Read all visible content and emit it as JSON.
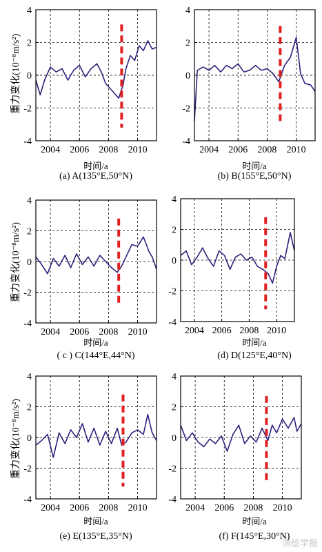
{
  "figure": {
    "ylabel": "重力变化(10⁻⁸m/s²)",
    "xlabel": "时间/a",
    "watermark": "测绘学报"
  },
  "chart_data": [
    {
      "type": "line",
      "caption": "(a) A(135°E,50°N)",
      "xticks": [
        "2004",
        "2006",
        "2008",
        "2010"
      ],
      "yticks": [
        "-4",
        "-2",
        "0",
        "2",
        "4"
      ],
      "xlim": [
        2003,
        2011.3
      ],
      "ylim": [
        -4,
        4
      ],
      "grid": true,
      "series_color": "#2e1f7a",
      "marker_color": "#e02020",
      "event_line_x": 2008.9,
      "event_line_y": [
        -3.2,
        3.1
      ],
      "series": [
        {
          "x": [
            2003.0,
            2003.3,
            2003.6,
            2004.0,
            2004.4,
            2004.8,
            2005.2,
            2005.6,
            2006.0,
            2006.4,
            2006.8,
            2007.2,
            2007.5,
            2007.8,
            2008.1,
            2008.4,
            2008.7,
            2009.0,
            2009.2,
            2009.5,
            2009.8,
            2010.1,
            2010.4,
            2010.7,
            2011.0,
            2011.3
          ],
          "y": [
            -0.3,
            -1.2,
            -0.3,
            0.5,
            0.2,
            0.4,
            -0.3,
            0.3,
            0.6,
            -0.1,
            0.4,
            0.7,
            0.2,
            -0.5,
            -0.8,
            -1.1,
            -1.4,
            -0.6,
            0.4,
            1.2,
            0.9,
            1.8,
            1.5,
            2.1,
            1.6,
            1.7
          ]
        }
      ]
    },
    {
      "type": "line",
      "caption": "(b) B(155°E,50°N)",
      "xticks": [
        "2004",
        "2006",
        "2008",
        "2010"
      ],
      "yticks": [
        "-4",
        "-2",
        "0",
        "2",
        "4"
      ],
      "xlim": [
        2003,
        2011.3
      ],
      "ylim": [
        -4,
        4
      ],
      "grid": true,
      "series_color": "#2e1f7a",
      "marker_color": "#e02020",
      "event_line_x": 2008.9,
      "event_line_y": [
        -2.8,
        3.0
      ],
      "series": [
        {
          "x": [
            2003.0,
            2003.2,
            2003.6,
            2004.0,
            2004.4,
            2004.8,
            2005.2,
            2005.6,
            2006.0,
            2006.4,
            2006.8,
            2007.2,
            2007.6,
            2008.0,
            2008.4,
            2008.8,
            2009.2,
            2009.6,
            2010.0,
            2010.3,
            2010.6,
            2011.0,
            2011.3
          ],
          "y": [
            -2.8,
            0.3,
            0.5,
            0.3,
            0.6,
            0.2,
            0.6,
            0.4,
            0.7,
            0.2,
            0.3,
            0.6,
            0.3,
            0.4,
            0.1,
            -0.4,
            0.6,
            1.1,
            2.3,
            0.1,
            -0.5,
            -0.6,
            -1.0
          ]
        }
      ]
    },
    {
      "type": "line",
      "caption": "( c ) C(144°E,44°N)",
      "xticks": [
        "2004",
        "2006",
        "2008",
        "2010"
      ],
      "yticks": [
        "-4",
        "-2",
        "0",
        "2",
        "4"
      ],
      "xlim": [
        2003,
        2011.3
      ],
      "ylim": [
        -4,
        4
      ],
      "grid": true,
      "series_color": "#2e1f7a",
      "marker_color": "#e02020",
      "event_line_x": 2008.7,
      "event_line_y": [
        -2.8,
        2.8
      ],
      "series": [
        {
          "x": [
            2003.0,
            2003.4,
            2003.8,
            2004.2,
            2004.6,
            2005.0,
            2005.4,
            2005.8,
            2006.2,
            2006.6,
            2007.0,
            2007.4,
            2007.8,
            2008.2,
            2008.6,
            2008.9,
            2009.2,
            2009.6,
            2010.0,
            2010.4,
            2010.8,
            2011.0,
            2011.3
          ],
          "y": [
            0.3,
            -0.2,
            -0.8,
            0.2,
            -0.3,
            0.4,
            -0.4,
            0.5,
            -0.2,
            0.3,
            -0.3,
            0.4,
            0.0,
            -0.4,
            -0.7,
            -0.3,
            0.3,
            1.1,
            1.0,
            1.6,
            0.6,
            0.3,
            -0.5
          ]
        }
      ]
    },
    {
      "type": "line",
      "caption": "(d) D(125°E,40°N)",
      "xticks": [
        "2004",
        "2006",
        "2008",
        "2010"
      ],
      "yticks": [
        "-4",
        "-2",
        "0",
        "2",
        "4"
      ],
      "xlim": [
        2003,
        2011.3
      ],
      "ylim": [
        -4,
        4
      ],
      "grid": true,
      "series_color": "#2e1f7a",
      "marker_color": "#e02020",
      "event_line_x": 2009.2,
      "event_line_y": [
        -3.2,
        2.8
      ],
      "series": [
        {
          "x": [
            2003.0,
            2003.4,
            2003.8,
            2004.2,
            2004.6,
            2005.0,
            2005.4,
            2005.8,
            2006.2,
            2006.6,
            2007.0,
            2007.4,
            2007.8,
            2008.2,
            2008.6,
            2009.0,
            2009.4,
            2009.7,
            2010.0,
            2010.3,
            2010.6,
            2011.0,
            2011.3
          ],
          "y": [
            0.3,
            0.6,
            -0.3,
            0.2,
            0.8,
            0.1,
            -0.4,
            0.6,
            0.3,
            -0.6,
            0.2,
            0.4,
            0.0,
            0.2,
            -0.4,
            -0.6,
            -0.9,
            -1.5,
            -0.4,
            0.3,
            0.1,
            1.8,
            0.6
          ]
        }
      ]
    },
    {
      "type": "line",
      "caption": "(e) E(135°E,35°N)",
      "xticks": [
        "2004",
        "2006",
        "2008",
        "2010"
      ],
      "yticks": [
        "-4",
        "-2",
        "0",
        "2",
        "4"
      ],
      "xlim": [
        2003,
        2011.3
      ],
      "ylim": [
        -4,
        4
      ],
      "grid": true,
      "series_color": "#2e1f7a",
      "marker_color": "#e02020",
      "event_line_x": 2009.0,
      "event_line_y": [
        -3.2,
        2.8
      ],
      "series": [
        {
          "x": [
            2003.0,
            2003.4,
            2003.8,
            2004.2,
            2004.6,
            2005.0,
            2005.4,
            2005.8,
            2006.2,
            2006.6,
            2007.0,
            2007.4,
            2007.8,
            2008.2,
            2008.6,
            2008.9,
            2009.2,
            2009.6,
            2010.0,
            2010.4,
            2010.7,
            2011.0,
            2011.3
          ],
          "y": [
            -0.5,
            -0.2,
            0.2,
            -1.3,
            0.3,
            -0.4,
            0.5,
            0.0,
            0.9,
            -0.3,
            0.6,
            -0.5,
            0.4,
            -0.4,
            0.6,
            -0.5,
            -0.3,
            0.3,
            0.5,
            0.2,
            1.5,
            0.3,
            -0.2
          ]
        }
      ]
    },
    {
      "type": "line",
      "caption": "(f) F(145°E,30°N)",
      "xticks": [
        "2004",
        "2006",
        "2008",
        "2010"
      ],
      "yticks": [
        "-4",
        "-2",
        "0",
        "2",
        "4"
      ],
      "xlim": [
        2003,
        2011.3
      ],
      "ylim": [
        -4,
        4
      ],
      "grid": true,
      "series_color": "#2e1f7a",
      "marker_color": "#e02020",
      "event_line_x": 2008.9,
      "event_line_y": [
        -3.0,
        2.7
      ],
      "series": [
        {
          "x": [
            2003.0,
            2003.4,
            2003.8,
            2004.2,
            2004.6,
            2005.0,
            2005.4,
            2005.8,
            2006.2,
            2006.6,
            2007.0,
            2007.4,
            2007.8,
            2008.2,
            2008.6,
            2009.0,
            2009.3,
            2009.6,
            2010.0,
            2010.4,
            2010.8,
            2011.0,
            2011.3
          ],
          "y": [
            0.8,
            -0.2,
            0.3,
            -0.3,
            -0.6,
            -0.1,
            -0.4,
            0.1,
            -0.9,
            0.2,
            0.8,
            -0.4,
            0.1,
            -0.3,
            0.6,
            -0.2,
            0.8,
            0.3,
            1.2,
            0.6,
            1.3,
            0.4,
            0.9
          ]
        }
      ]
    }
  ]
}
